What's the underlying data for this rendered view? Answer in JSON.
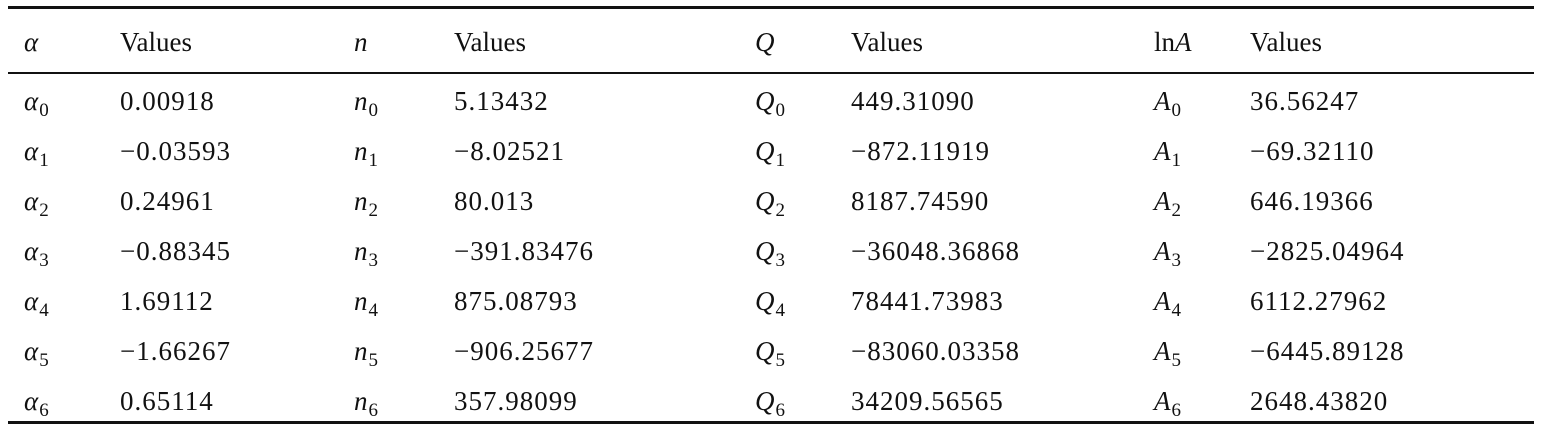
{
  "table": {
    "headers": [
      "α",
      "Values",
      "n",
      "Values",
      "Q",
      "Values",
      "lnA",
      "Values"
    ],
    "header_parts": {
      "alpha": "α",
      "n": "n",
      "q": "Q",
      "lna_prefix": "ln",
      "lna_var": "A"
    },
    "rows": [
      {
        "a_sym": "α",
        "a_sub": "0",
        "a_val": "0.00918",
        "n_sym": "n",
        "n_sub": "0",
        "n_val": "5.13432",
        "q_sym": "Q",
        "q_sub": "0",
        "q_val": "449.31090",
        "A_sym": "A",
        "A_sub": "0",
        "A_val": "36.56247"
      },
      {
        "a_sym": "α",
        "a_sub": "1",
        "a_val": " −0.03593",
        "n_sym": "n",
        "n_sub": "1",
        "n_val": " −8.02521",
        "q_sym": "Q",
        "q_sub": "1",
        "q_val": " −872.11919",
        "A_sym": "A",
        "A_sub": "1",
        "A_val": " −69.32110"
      },
      {
        "a_sym": "α",
        "a_sub": "2",
        "a_val": "0.24961",
        "n_sym": "n",
        "n_sub": "2",
        "n_val": "80.013",
        "q_sym": "Q",
        "q_sub": "2",
        "q_val": "8187.74590",
        "A_sym": "A",
        "A_sub": "2",
        "A_val": "646.19366"
      },
      {
        "a_sym": "α",
        "a_sub": "3",
        "a_val": " −0.88345",
        "n_sym": "n",
        "n_sub": "3",
        "n_val": " −391.83476",
        "q_sym": "Q",
        "q_sub": "3",
        "q_val": " −36048.36868",
        "A_sym": "A",
        "A_sub": "3",
        "A_val": " −2825.04964"
      },
      {
        "a_sym": "α",
        "a_sub": "4",
        "a_val": "1.69112",
        "n_sym": "n",
        "n_sub": "4",
        "n_val": "875.08793",
        "q_sym": "Q",
        "q_sub": "4",
        "q_val": "78441.73983",
        "A_sym": "A",
        "A_sub": "4",
        "A_val": "6112.27962"
      },
      {
        "a_sym": "α",
        "a_sub": "5",
        "a_val": " −1.66267",
        "n_sym": "n",
        "n_sub": "5",
        "n_val": " −906.25677",
        "q_sym": "Q",
        "q_sub": "5",
        "q_val": " −83060.03358",
        "A_sym": "A",
        "A_sub": "5",
        "A_val": " −6445.89128"
      },
      {
        "a_sym": "α",
        "a_sub": "6",
        "a_val": "0.65114",
        "n_sym": "n",
        "n_sub": "6",
        "n_val": "357.98099",
        "q_sym": "Q",
        "q_sub": "6",
        "q_val": "34209.56565",
        "A_sym": "A",
        "A_sub": "6",
        "A_val": "2648.43820"
      }
    ]
  }
}
